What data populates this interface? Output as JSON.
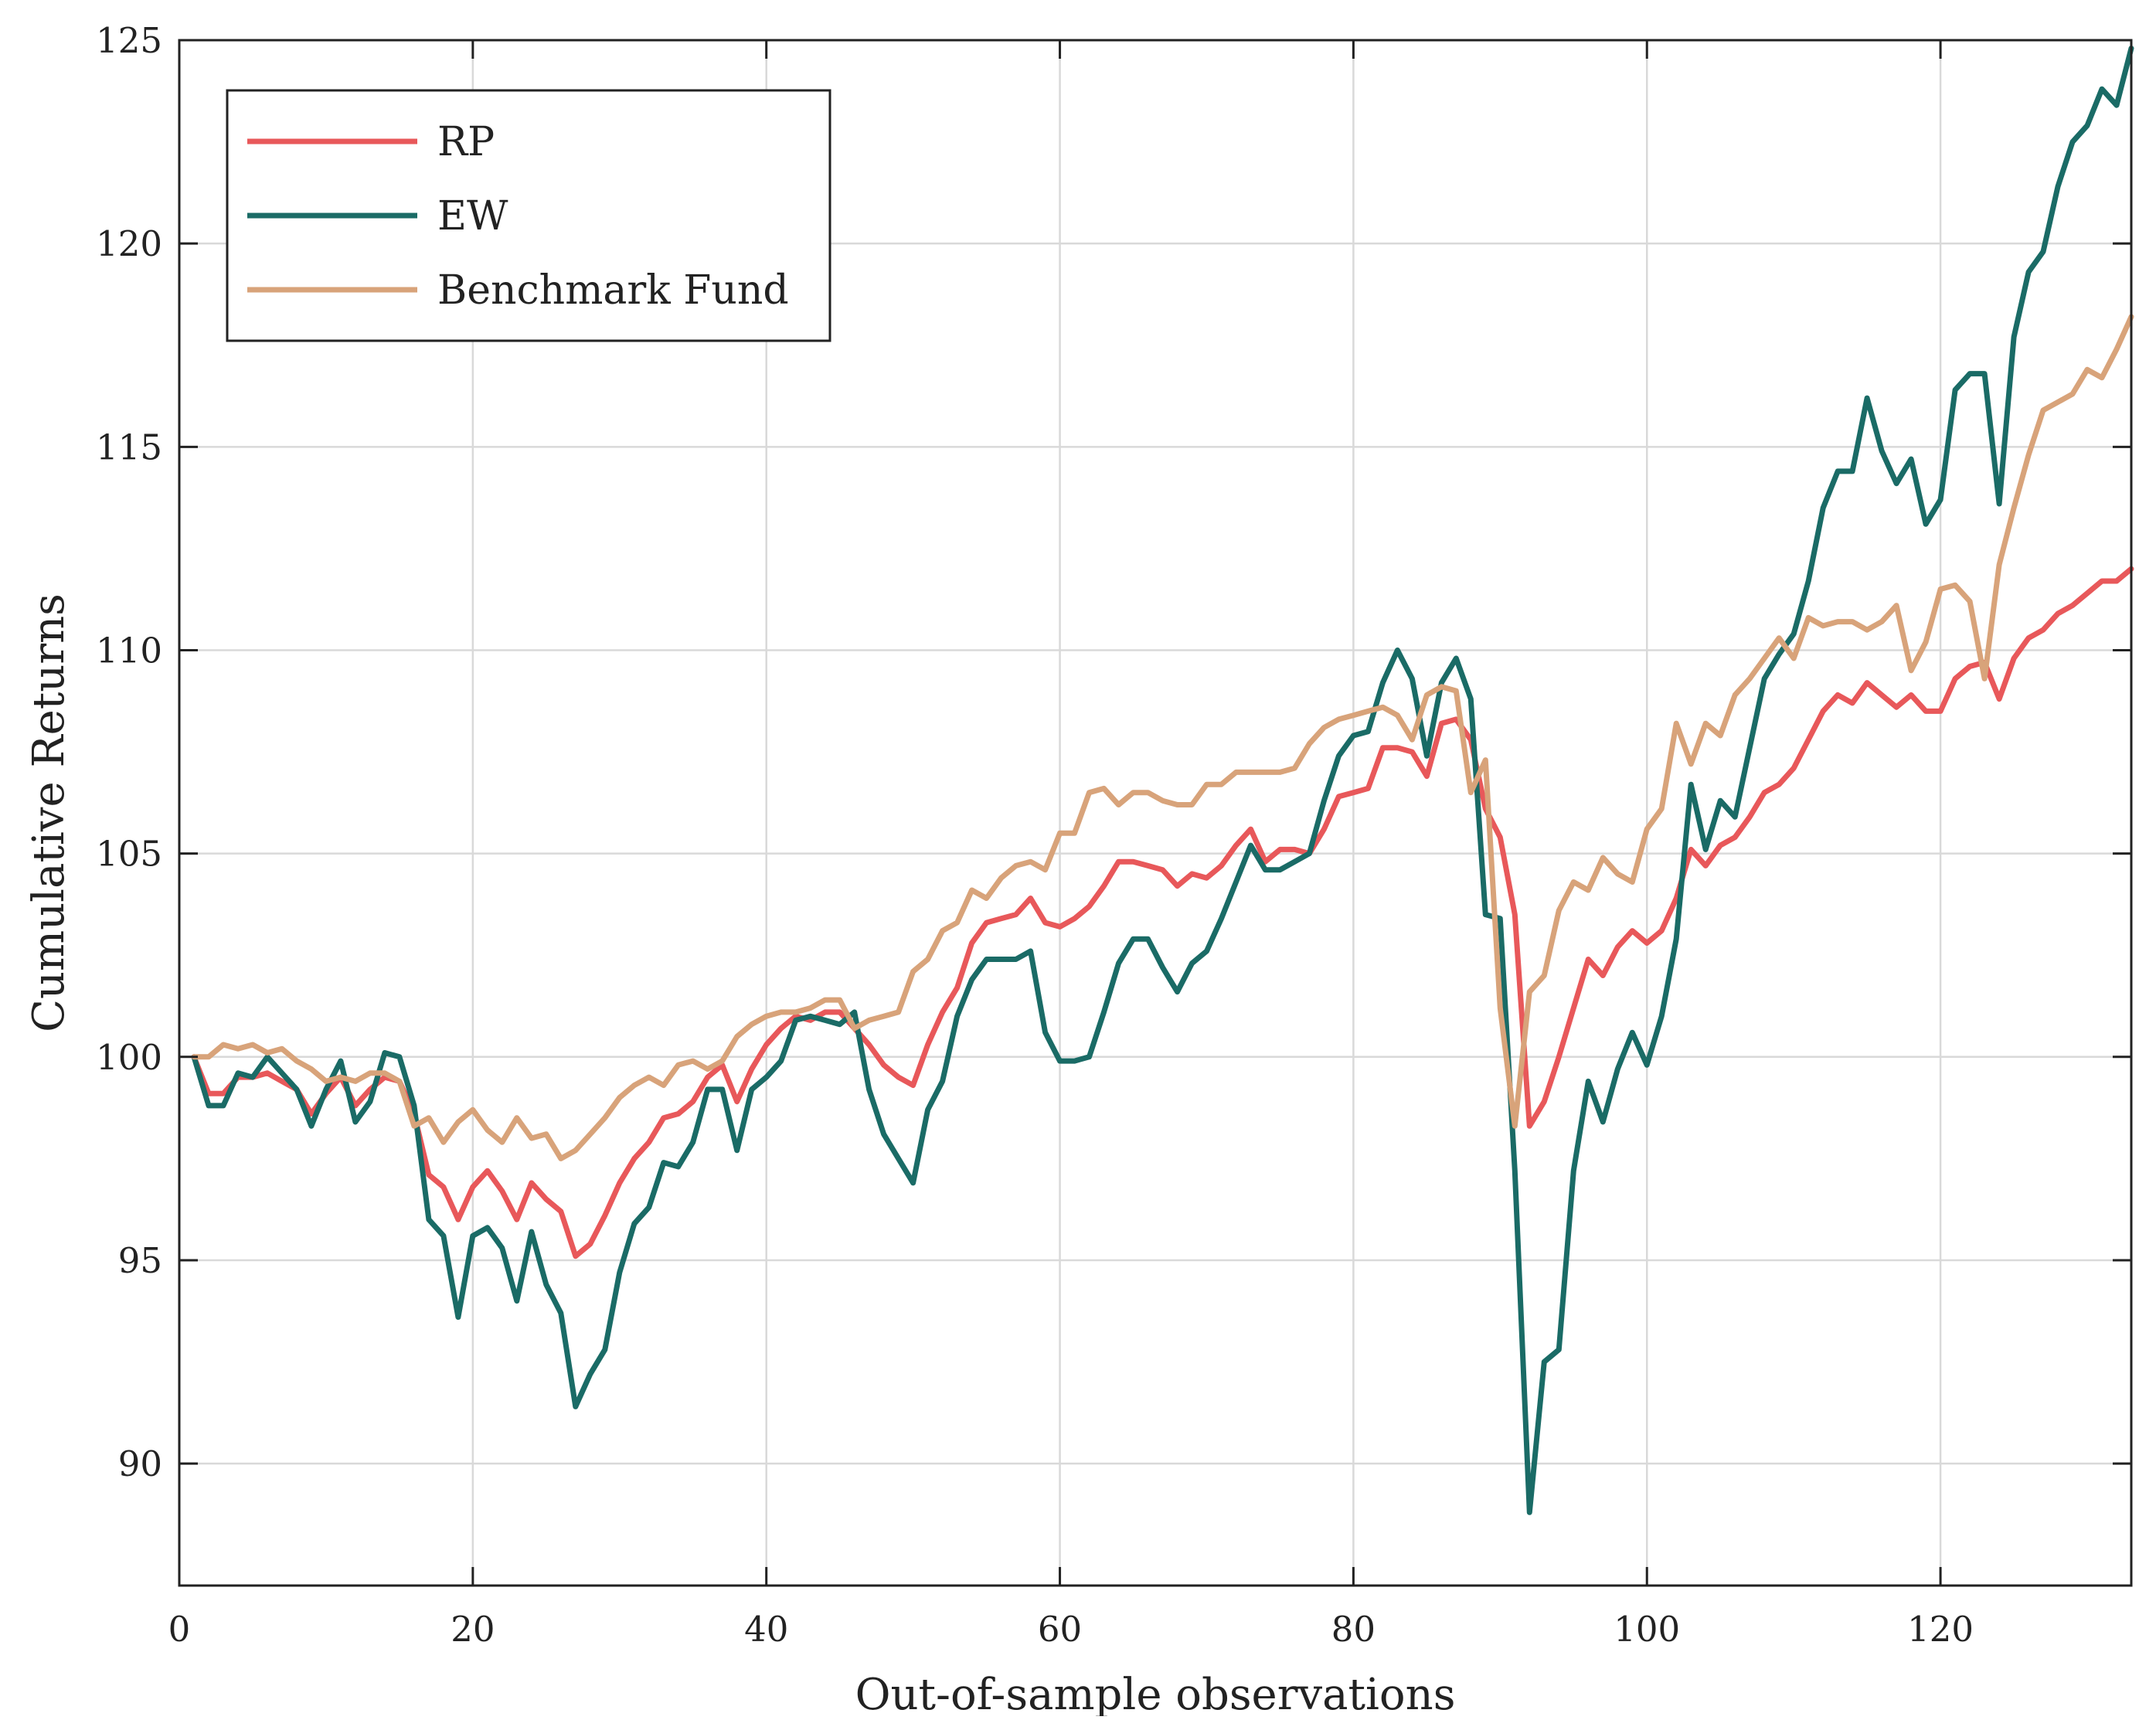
{
  "chart_data": {
    "type": "line",
    "title": "",
    "xlabel": "Out-of-sample observations",
    "ylabel": "Cumulative Returns",
    "xlim": [
      0,
      133
    ],
    "ylim": [
      87,
      125
    ],
    "xticks": [
      0,
      20,
      40,
      60,
      80,
      100,
      120
    ],
    "yticks": [
      90,
      95,
      100,
      105,
      110,
      115,
      120,
      125
    ],
    "grid": true,
    "legend_position": "top-left",
    "series": [
      {
        "name": "RP",
        "color": "#e8585a",
        "values": [
          100,
          99.1,
          99.1,
          99.5,
          99.5,
          99.6,
          99.4,
          99.2,
          98.6,
          99.1,
          99.5,
          98.8,
          99.2,
          99.5,
          99.4,
          98.6,
          97.1,
          96.8,
          96,
          96.8,
          97.2,
          96.7,
          96,
          96.9,
          96.5,
          96.2,
          95.1,
          95.4,
          96.1,
          96.9,
          97.5,
          97.9,
          98.5,
          98.6,
          98.9,
          99.5,
          99.8,
          98.9,
          99.7,
          100.3,
          100.7,
          101,
          100.9,
          101.1,
          101.1,
          100.7,
          100.3,
          99.8,
          99.5,
          99.3,
          100.3,
          101.1,
          101.7,
          102.8,
          103.3,
          103.4,
          103.5,
          103.9,
          103.3,
          103.2,
          103.4,
          103.7,
          104.2,
          104.8,
          104.8,
          104.7,
          104.6,
          104.2,
          104.5,
          104.4,
          104.7,
          105.2,
          105.6,
          104.8,
          105.1,
          105.1,
          105,
          105.6,
          106.4,
          106.5,
          106.6,
          107.6,
          107.6,
          107.5,
          106.9,
          108.2,
          108.3,
          107.8,
          106.1,
          105.4,
          103.5,
          98.3,
          98.9,
          100,
          101.2,
          102.4,
          102,
          102.7,
          103.1,
          102.8,
          103.1,
          103.9,
          105.1,
          104.7,
          105.2,
          105.4,
          105.9,
          106.5,
          106.7,
          107.1,
          107.8,
          108.5,
          108.9,
          108.7,
          109.2,
          108.9,
          108.6,
          108.9,
          108.5,
          108.5,
          109.3,
          109.6,
          109.7,
          108.8,
          109.8,
          110.3,
          110.5,
          110.9,
          111.1,
          111.4,
          111.7,
          111.7,
          112
        ]
      },
      {
        "name": "EW",
        "color": "#1a6b66",
        "values": [
          100,
          98.8,
          98.8,
          99.6,
          99.5,
          100,
          99.6,
          99.2,
          98.3,
          99.2,
          99.9,
          98.4,
          98.9,
          100.1,
          100,
          98.8,
          96,
          95.6,
          93.6,
          95.6,
          95.8,
          95.3,
          94,
          95.7,
          94.4,
          93.7,
          91.4,
          92.2,
          92.8,
          94.7,
          95.9,
          96.3,
          97.4,
          97.3,
          97.9,
          99.2,
          99.2,
          97.7,
          99.2,
          99.5,
          99.9,
          100.9,
          101,
          100.9,
          100.8,
          101.1,
          99.2,
          98.1,
          97.5,
          96.9,
          98.7,
          99.4,
          101,
          101.9,
          102.4,
          102.4,
          102.4,
          102.6,
          100.6,
          99.9,
          99.9,
          100,
          101.1,
          102.3,
          102.9,
          102.9,
          102.2,
          101.6,
          102.3,
          102.6,
          103.4,
          104.3,
          105.2,
          104.6,
          104.6,
          104.8,
          105,
          106.3,
          107.4,
          107.9,
          108,
          109.2,
          110,
          109.3,
          107.4,
          109.2,
          109.8,
          108.8,
          103.5,
          103.4,
          97.2,
          88.8,
          92.5,
          92.8,
          97.2,
          99.4,
          98.4,
          99.7,
          100.6,
          99.8,
          101,
          102.9,
          106.7,
          105.1,
          106.3,
          105.9,
          107.6,
          109.3,
          109.9,
          110.4,
          111.7,
          113.5,
          114.4,
          114.4,
          116.2,
          114.9,
          114.1,
          114.7,
          113.1,
          113.7,
          116.4,
          116.8,
          116.8,
          113.6,
          117.7,
          119.3,
          119.8,
          121.4,
          122.5,
          122.9,
          123.8,
          123.4,
          124.8
        ]
      },
      {
        "name": "Benchmark Fund",
        "color": "#d8a37a",
        "values": [
          100,
          100,
          100.3,
          100.2,
          100.3,
          100.1,
          100.2,
          99.9,
          99.7,
          99.4,
          99.5,
          99.4,
          99.6,
          99.6,
          99.4,
          98.3,
          98.5,
          97.9,
          98.4,
          98.7,
          98.2,
          97.9,
          98.5,
          98,
          98.1,
          97.5,
          97.7,
          98.1,
          98.5,
          99,
          99.3,
          99.5,
          99.3,
          99.8,
          99.9,
          99.7,
          99.9,
          100.5,
          100.8,
          101,
          101.1,
          101.1,
          101.2,
          101.4,
          101.4,
          100.7,
          100.9,
          101,
          101.1,
          102.1,
          102.4,
          103.1,
          103.3,
          104.1,
          103.9,
          104.4,
          104.7,
          104.8,
          104.6,
          105.5,
          105.5,
          106.5,
          106.6,
          106.2,
          106.5,
          106.5,
          106.3,
          106.2,
          106.2,
          106.7,
          106.7,
          107,
          107,
          107,
          107,
          107.1,
          107.7,
          108.1,
          108.3,
          108.4,
          108.5,
          108.6,
          108.4,
          107.8,
          108.9,
          109.1,
          109,
          106.5,
          107.3,
          101.2,
          98.3,
          101.6,
          102,
          103.6,
          104.3,
          104.1,
          104.9,
          104.5,
          104.3,
          105.6,
          106.1,
          108.2,
          107.2,
          108.2,
          107.9,
          108.9,
          109.3,
          109.8,
          110.3,
          109.8,
          110.8,
          110.6,
          110.7,
          110.7,
          110.5,
          110.7,
          111.1,
          109.5,
          110.2,
          111.5,
          111.6,
          111.2,
          109.3,
          112.1,
          113.5,
          114.8,
          115.9,
          116.1,
          116.3,
          116.9,
          116.7,
          117.4,
          118.2
        ]
      }
    ]
  }
}
